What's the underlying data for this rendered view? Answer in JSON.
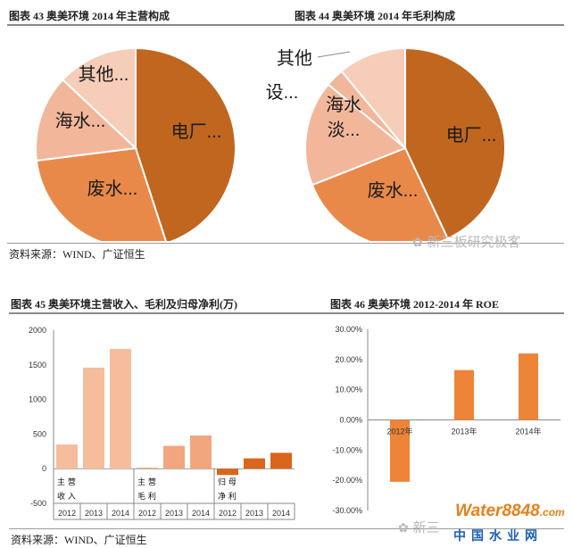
{
  "titles": {
    "fig43": "图表 43 奥美环境 2014 年主营构成",
    "fig44": "图表 44 奥美环境 2014 年毛利构成",
    "fig45": "图表 45 奥美环境主营收入、毛利及归母净利(万)",
    "fig46": "图表 46 奥美环境 2012-2014 年 ROE"
  },
  "sources": {
    "top": "资料来源：WIND、广证恒生",
    "bottom": "资料来源：WIND、广证恒生"
  },
  "watermarks": {
    "top": "新三板研究极客",
    "bottom": "新三",
    "logo_main": "Water8848",
    "logo_domain": ".com",
    "logo_sub": "中国水业网"
  },
  "colors": {
    "pie_dark": "#c0661f",
    "pie_mid": "#e8894a",
    "pie_light": "#f2b79a",
    "pie_lightest": "#f6cdb8",
    "bar_light": "#f5bd9b",
    "bar_mid": "#f2a67e",
    "bar_dark": "#d9661c",
    "roe": "#ee8437"
  },
  "chart_data": [
    {
      "type": "pie",
      "title": "图表 43 奥美环境 2014 年主营构成",
      "slices": [
        {
          "label": "电厂...",
          "value": 45
        },
        {
          "label": "废水...",
          "value": 28
        },
        {
          "label": "海水...",
          "value": 14
        },
        {
          "label": "其他...",
          "value": 13
        }
      ]
    },
    {
      "type": "pie",
      "title": "图表 44 奥美环境 2014 年毛利构成",
      "slices": [
        {
          "label": "电厂...",
          "value": 43
        },
        {
          "label": "废水...",
          "value": 26
        },
        {
          "label": "海水淡...",
          "value": 17
        },
        {
          "label": "其他",
          "value": 3
        },
        {
          "label": "设...",
          "value": 11
        }
      ]
    },
    {
      "type": "bar",
      "title": "图表 45 奥美环境主营收入、毛利及归母净利(万)",
      "ylim": [
        -500,
        2000
      ],
      "yticks": [
        2000,
        1500,
        1000,
        500,
        0,
        -500
      ],
      "groups": [
        {
          "name": "主营收入",
          "categories": [
            "2012",
            "2013",
            "2014"
          ],
          "values": [
            350,
            1460,
            1730
          ]
        },
        {
          "name": "主营毛利",
          "categories": [
            "2012",
            "2013",
            "2014"
          ],
          "values": [
            15,
            330,
            480
          ]
        },
        {
          "name": "归母净利",
          "categories": [
            "2012",
            "2013",
            "2014"
          ],
          "values": [
            -90,
            150,
            230
          ]
        }
      ]
    },
    {
      "type": "bar",
      "title": "图表 46 奥美环境 2012-2014 年 ROE",
      "categories": [
        "2012年",
        "2013年",
        "2014年"
      ],
      "values": [
        -20.5,
        16.5,
        22.0
      ],
      "ylim": [
        -30,
        30
      ],
      "yticks": [
        "30.00%",
        "20.00%",
        "10.00%",
        "0.00%",
        "-10.00%",
        "-20.00%",
        "-30.00%"
      ]
    }
  ]
}
